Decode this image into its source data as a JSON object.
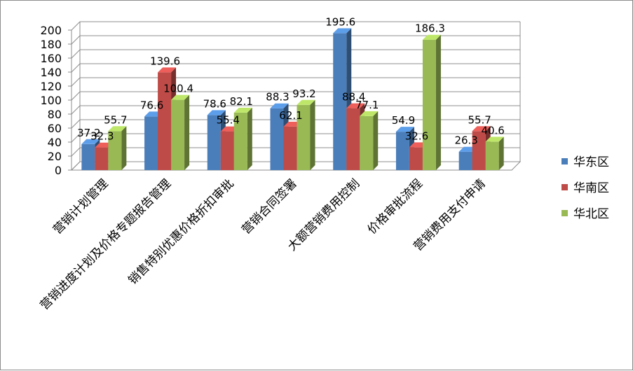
{
  "chart_data": {
    "type": "bar",
    "categories": [
      "营销计划管理",
      "营销进度计划及价格专题报告管理",
      "销售特别优惠价格折扣审批",
      "营销合同签署",
      "大额营销费用控制",
      "价格审批流程",
      "营销费用支付申请"
    ],
    "series": [
      {
        "name": "华东区",
        "values": [
          37.2,
          76.6,
          78.6,
          88.3,
          195.6,
          54.9,
          26.3
        ],
        "color": "#4a7ebb"
      },
      {
        "name": "华南区",
        "values": [
          32.3,
          139.6,
          55.4,
          62.1,
          88.4,
          32.6,
          55.7
        ],
        "color": "#be4b48"
      },
      {
        "name": "华北区",
        "values": [
          55.7,
          100.4,
          82.1,
          93.2,
          77.1,
          186.3,
          40.6
        ],
        "color": "#98b954"
      }
    ],
    "ylim": [
      0,
      200
    ],
    "yticks": [
      "0",
      "20",
      "40",
      "60",
      "80",
      "100",
      "120",
      "140",
      "160",
      "180",
      "200"
    ],
    "grid": true,
    "legend_position": "right",
    "style": "3d-clustered-column"
  }
}
